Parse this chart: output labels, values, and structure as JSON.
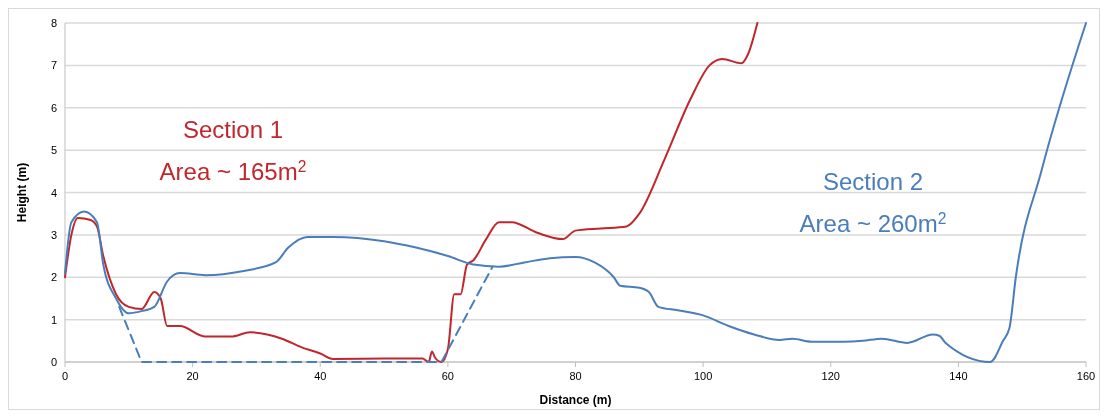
{
  "chart_data": {
    "type": "line",
    "xlabel": "Distance (m)",
    "ylabel": "Height (m)",
    "xlim": [
      0,
      160
    ],
    "xticks": [
      0,
      20,
      40,
      60,
      80,
      100,
      120,
      140,
      160
    ],
    "ylim": [
      0,
      8
    ],
    "yticks": [
      0,
      1,
      2,
      3,
      4,
      5,
      6,
      7,
      8
    ],
    "grid": "y",
    "marker": "none",
    "annotations": [
      "Area ~ 165m$^{2}$",
      "Area ~ 260m$^{2}$"
    ],
    "series": [
      {
        "name": "Section 1",
        "color": "#c0272d",
        "x": [
          0,
          1,
          2,
          4,
          5,
          6,
          8,
          10,
          12,
          14,
          15,
          16,
          18,
          22,
          26,
          29,
          34,
          37,
          40,
          42,
          50,
          56,
          57,
          57.5,
          58,
          59,
          60,
          61,
          62,
          63,
          64,
          66,
          68,
          70,
          74,
          78,
          80,
          84,
          88,
          90,
          94,
          98,
          101,
          103,
          106,
          107,
          108.5
        ],
        "values": [
          2.0,
          3.0,
          3.4,
          3.35,
          3.2,
          2.5,
          1.6,
          1.3,
          1.25,
          1.65,
          1.5,
          0.85,
          0.85,
          0.6,
          0.6,
          0.7,
          0.55,
          0.35,
          0.2,
          0.07,
          0.08,
          0.08,
          0.0,
          0.25,
          0.1,
          0.0,
          0.3,
          1.6,
          1.6,
          2.3,
          2.4,
          2.9,
          3.3,
          3.3,
          3.05,
          2.9,
          3.1,
          3.15,
          3.2,
          3.5,
          4.8,
          6.2,
          7.0,
          7.15,
          7.05,
          7.25,
          8.0
        ]
      },
      {
        "name": "Section 2",
        "color": "#4a7ebb",
        "x": [
          0,
          1,
          3,
          5,
          6,
          8,
          10,
          12,
          14,
          16,
          18,
          22,
          28,
          33,
          35,
          38,
          42,
          50,
          55,
          60,
          64,
          68,
          72,
          76,
          80,
          83,
          86,
          87,
          90,
          91.5,
          93,
          96,
          100,
          104,
          108,
          112,
          114,
          117,
          122,
          125,
          128,
          132,
          136,
          137,
          138,
          145,
          147,
          148,
          149,
          153,
          160
        ],
        "values": [
          2.1,
          3.3,
          3.55,
          3.3,
          2.3,
          1.5,
          1.15,
          1.2,
          1.3,
          1.9,
          2.1,
          2.05,
          2.15,
          2.35,
          2.7,
          2.95,
          2.95,
          2.85,
          2.7,
          2.5,
          2.3,
          2.25,
          2.35,
          2.45,
          2.48,
          2.35,
          2.0,
          1.8,
          1.75,
          1.65,
          1.3,
          1.22,
          1.1,
          0.85,
          0.65,
          0.52,
          0.55,
          0.48,
          0.48,
          0.5,
          0.55,
          0.45,
          0.65,
          0.62,
          0.45,
          0.0,
          0.5,
          0.8,
          2.0,
          4.5,
          8.0
        ]
      },
      {
        "color": "#4a7ebb",
        "line_style": "dashed",
        "x": [
          8.5,
          12,
          59,
          67
        ],
        "values": [
          1.3,
          0,
          0,
          2.25
        ]
      }
    ]
  }
}
